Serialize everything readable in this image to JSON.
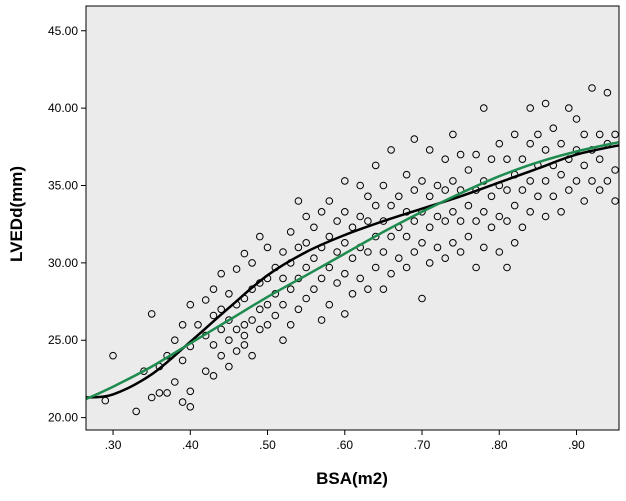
{
  "chart_data": {
    "type": "scatter",
    "title": "",
    "xlabel": "BSA(m2)",
    "ylabel": "LVEDd(mm)",
    "xlim": [
      0.265,
      0.955
    ],
    "ylim": [
      19.2,
      46.6
    ],
    "x_ticks": [
      {
        "value": 0.3,
        "label": ".30"
      },
      {
        "value": 0.4,
        "label": ".40"
      },
      {
        "value": 0.5,
        "label": ".50"
      },
      {
        "value": 0.6,
        "label": ".60"
      },
      {
        "value": 0.7,
        "label": ".70"
      },
      {
        "value": 0.8,
        "label": ".80"
      },
      {
        "value": 0.9,
        "label": ".90"
      }
    ],
    "y_ticks": [
      {
        "value": 20,
        "label": "20.00"
      },
      {
        "value": 25,
        "label": "25.00"
      },
      {
        "value": 30,
        "label": "30.00"
      },
      {
        "value": 35,
        "label": "35.00"
      },
      {
        "value": 40,
        "label": "40.00"
      },
      {
        "value": 45,
        "label": "45.00"
      }
    ],
    "grid": false,
    "background": "#ebebeb",
    "marker": "open-circle",
    "series": [
      {
        "type": "scatter",
        "color": "#000000",
        "points": [
          [
            0.3,
            24.0
          ],
          [
            0.29,
            21.1
          ],
          [
            0.33,
            20.4
          ],
          [
            0.34,
            23.0
          ],
          [
            0.35,
            21.3
          ],
          [
            0.35,
            26.7
          ],
          [
            0.36,
            21.6
          ],
          [
            0.36,
            23.3
          ],
          [
            0.37,
            24.0
          ],
          [
            0.37,
            21.6
          ],
          [
            0.38,
            22.3
          ],
          [
            0.38,
            25.0
          ],
          [
            0.39,
            21.0
          ],
          [
            0.39,
            23.7
          ],
          [
            0.39,
            26.0
          ],
          [
            0.4,
            20.7
          ],
          [
            0.4,
            24.6
          ],
          [
            0.4,
            27.3
          ],
          [
            0.4,
            21.7
          ],
          [
            0.41,
            26.0
          ],
          [
            0.42,
            23.0
          ],
          [
            0.42,
            25.3
          ],
          [
            0.42,
            27.6
          ],
          [
            0.43,
            22.7
          ],
          [
            0.43,
            24.7
          ],
          [
            0.43,
            26.6
          ],
          [
            0.43,
            28.3
          ],
          [
            0.44,
            24.0
          ],
          [
            0.44,
            25.7
          ],
          [
            0.44,
            27.0
          ],
          [
            0.44,
            29.3
          ],
          [
            0.45,
            23.3
          ],
          [
            0.45,
            25.0
          ],
          [
            0.45,
            26.3
          ],
          [
            0.45,
            28.0
          ],
          [
            0.46,
            24.3
          ],
          [
            0.46,
            25.7
          ],
          [
            0.46,
            27.3
          ],
          [
            0.46,
            29.6
          ],
          [
            0.47,
            24.7
          ],
          [
            0.47,
            26.0
          ],
          [
            0.47,
            27.7
          ],
          [
            0.47,
            30.6
          ],
          [
            0.47,
            25.3
          ],
          [
            0.48,
            24.0
          ],
          [
            0.48,
            26.3
          ],
          [
            0.48,
            28.3
          ],
          [
            0.48,
            30.0
          ],
          [
            0.49,
            25.7
          ],
          [
            0.49,
            27.0
          ],
          [
            0.49,
            28.7
          ],
          [
            0.49,
            31.7
          ],
          [
            0.5,
            26.0
          ],
          [
            0.5,
            27.3
          ],
          [
            0.5,
            29.0
          ],
          [
            0.5,
            31.0
          ],
          [
            0.51,
            26.6
          ],
          [
            0.51,
            28.0
          ],
          [
            0.51,
            29.7
          ],
          [
            0.52,
            25.0
          ],
          [
            0.52,
            27.3
          ],
          [
            0.52,
            29.0
          ],
          [
            0.52,
            30.7
          ],
          [
            0.53,
            26.0
          ],
          [
            0.53,
            28.3
          ],
          [
            0.53,
            30.0
          ],
          [
            0.53,
            32.0
          ],
          [
            0.54,
            27.0
          ],
          [
            0.54,
            29.0
          ],
          [
            0.54,
            31.0
          ],
          [
            0.54,
            34.0
          ],
          [
            0.55,
            27.7
          ],
          [
            0.55,
            29.7
          ],
          [
            0.55,
            31.3
          ],
          [
            0.55,
            33.0
          ],
          [
            0.56,
            28.3
          ],
          [
            0.56,
            30.3
          ],
          [
            0.56,
            32.3
          ],
          [
            0.57,
            26.3
          ],
          [
            0.57,
            29.0
          ],
          [
            0.57,
            31.0
          ],
          [
            0.57,
            33.3
          ],
          [
            0.58,
            27.3
          ],
          [
            0.58,
            29.7
          ],
          [
            0.58,
            31.7
          ],
          [
            0.58,
            34.0
          ],
          [
            0.59,
            28.7
          ],
          [
            0.59,
            30.7
          ],
          [
            0.59,
            32.7
          ],
          [
            0.6,
            26.7
          ],
          [
            0.6,
            29.3
          ],
          [
            0.6,
            31.3
          ],
          [
            0.6,
            33.3
          ],
          [
            0.6,
            35.3
          ],
          [
            0.61,
            28.0
          ],
          [
            0.61,
            30.3
          ],
          [
            0.61,
            32.3
          ],
          [
            0.62,
            29.0
          ],
          [
            0.62,
            31.0
          ],
          [
            0.62,
            33.0
          ],
          [
            0.62,
            35.0
          ],
          [
            0.63,
            28.3
          ],
          [
            0.63,
            30.7
          ],
          [
            0.63,
            32.7
          ],
          [
            0.63,
            34.3
          ],
          [
            0.64,
            29.7
          ],
          [
            0.64,
            31.7
          ],
          [
            0.64,
            33.7
          ],
          [
            0.64,
            36.3
          ],
          [
            0.65,
            28.3
          ],
          [
            0.65,
            30.7
          ],
          [
            0.65,
            32.7
          ],
          [
            0.65,
            35.0
          ],
          [
            0.66,
            29.3
          ],
          [
            0.66,
            31.7
          ],
          [
            0.66,
            33.7
          ],
          [
            0.66,
            37.3
          ],
          [
            0.67,
            30.3
          ],
          [
            0.67,
            32.3
          ],
          [
            0.67,
            34.3
          ],
          [
            0.68,
            29.7
          ],
          [
            0.68,
            31.7
          ],
          [
            0.68,
            33.3
          ],
          [
            0.68,
            35.7
          ],
          [
            0.69,
            30.7
          ],
          [
            0.69,
            32.7
          ],
          [
            0.69,
            34.7
          ],
          [
            0.69,
            38.0
          ],
          [
            0.7,
            27.7
          ],
          [
            0.7,
            31.3
          ],
          [
            0.7,
            33.3
          ],
          [
            0.7,
            35.3
          ],
          [
            0.71,
            30.0
          ],
          [
            0.71,
            32.3
          ],
          [
            0.71,
            34.3
          ],
          [
            0.71,
            37.3
          ],
          [
            0.72,
            31.0
          ],
          [
            0.72,
            33.0
          ],
          [
            0.72,
            35.0
          ],
          [
            0.73,
            30.3
          ],
          [
            0.73,
            32.7
          ],
          [
            0.73,
            34.7
          ],
          [
            0.73,
            36.7
          ],
          [
            0.74,
            31.3
          ],
          [
            0.74,
            33.3
          ],
          [
            0.74,
            35.3
          ],
          [
            0.74,
            38.3
          ],
          [
            0.75,
            30.7
          ],
          [
            0.75,
            32.7
          ],
          [
            0.75,
            34.7
          ],
          [
            0.75,
            37.0
          ],
          [
            0.76,
            31.7
          ],
          [
            0.76,
            33.7
          ],
          [
            0.76,
            36.0
          ],
          [
            0.77,
            29.7
          ],
          [
            0.77,
            32.7
          ],
          [
            0.77,
            34.7
          ],
          [
            0.77,
            37.0
          ],
          [
            0.78,
            31.0
          ],
          [
            0.78,
            33.3
          ],
          [
            0.78,
            35.3
          ],
          [
            0.78,
            40.0
          ],
          [
            0.79,
            32.3
          ],
          [
            0.79,
            34.3
          ],
          [
            0.79,
            36.7
          ],
          [
            0.8,
            30.7
          ],
          [
            0.8,
            33.0
          ],
          [
            0.8,
            35.0
          ],
          [
            0.8,
            37.7
          ],
          [
            0.81,
            29.7
          ],
          [
            0.81,
            32.7
          ],
          [
            0.81,
            34.7
          ],
          [
            0.81,
            36.7
          ],
          [
            0.82,
            31.3
          ],
          [
            0.82,
            33.7
          ],
          [
            0.82,
            35.7
          ],
          [
            0.82,
            38.3
          ],
          [
            0.83,
            32.3
          ],
          [
            0.83,
            34.7
          ],
          [
            0.83,
            36.7
          ],
          [
            0.84,
            33.3
          ],
          [
            0.84,
            35.3
          ],
          [
            0.84,
            37.7
          ],
          [
            0.84,
            40.0
          ],
          [
            0.85,
            34.3
          ],
          [
            0.85,
            36.3
          ],
          [
            0.85,
            38.3
          ],
          [
            0.86,
            33.0
          ],
          [
            0.86,
            35.3
          ],
          [
            0.86,
            37.3
          ],
          [
            0.86,
            40.3
          ],
          [
            0.87,
            34.3
          ],
          [
            0.87,
            36.3
          ],
          [
            0.87,
            38.7
          ],
          [
            0.88,
            33.3
          ],
          [
            0.88,
            35.7
          ],
          [
            0.88,
            37.7
          ],
          [
            0.89,
            34.7
          ],
          [
            0.89,
            36.7
          ],
          [
            0.89,
            40.0
          ],
          [
            0.9,
            35.3
          ],
          [
            0.9,
            37.3
          ],
          [
            0.9,
            39.3
          ],
          [
            0.91,
            34.0
          ],
          [
            0.91,
            36.3
          ],
          [
            0.91,
            38.3
          ],
          [
            0.92,
            35.3
          ],
          [
            0.92,
            37.3
          ],
          [
            0.92,
            41.3
          ],
          [
            0.93,
            34.7
          ],
          [
            0.93,
            36.7
          ],
          [
            0.93,
            38.3
          ],
          [
            0.94,
            35.3
          ],
          [
            0.94,
            37.7
          ],
          [
            0.94,
            41.0
          ],
          [
            0.95,
            34.0
          ],
          [
            0.95,
            36.0
          ],
          [
            0.95,
            38.3
          ]
        ]
      },
      {
        "type": "line",
        "color": "#000000",
        "smooth": true,
        "points": [
          [
            0.265,
            21.3
          ],
          [
            0.3,
            21.5
          ],
          [
            0.35,
            22.8
          ],
          [
            0.4,
            24.9
          ],
          [
            0.45,
            27.1
          ],
          [
            0.5,
            29.2
          ],
          [
            0.55,
            30.7
          ],
          [
            0.6,
            31.8
          ],
          [
            0.65,
            32.7
          ],
          [
            0.7,
            33.5
          ],
          [
            0.75,
            34.3
          ],
          [
            0.8,
            35.2
          ],
          [
            0.85,
            36.1
          ],
          [
            0.9,
            37.0
          ],
          [
            0.955,
            37.6
          ]
        ]
      },
      {
        "type": "line",
        "color": "#1e8b4f",
        "smooth": true,
        "points": [
          [
            0.265,
            21.2
          ],
          [
            0.3,
            22.0
          ],
          [
            0.35,
            23.3
          ],
          [
            0.4,
            24.8
          ],
          [
            0.45,
            26.3
          ],
          [
            0.5,
            27.8
          ],
          [
            0.55,
            29.2
          ],
          [
            0.6,
            30.6
          ],
          [
            0.65,
            32.0
          ],
          [
            0.7,
            33.3
          ],
          [
            0.75,
            34.5
          ],
          [
            0.8,
            35.6
          ],
          [
            0.85,
            36.5
          ],
          [
            0.9,
            37.2
          ],
          [
            0.955,
            37.8
          ]
        ]
      }
    ]
  }
}
